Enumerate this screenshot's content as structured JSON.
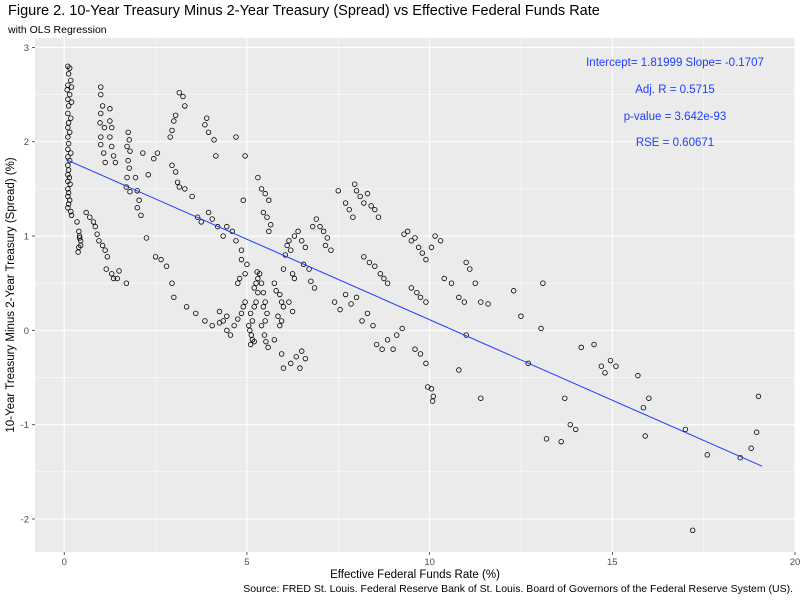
{
  "header": {
    "title": "Figure 2. 10-Year Treasury Minus 2-Year Treasury (Spread) vs Effective Federal Funds Rate",
    "subtitle": "with OLS Regression",
    "caption": "Source: FRED St. Louis. Federal Reserve Bank of St. Louis. Board of Governors of the Federal Reserve System (US)."
  },
  "colors": {
    "panel_bg": "#ebebeb",
    "grid_major": "#ffffff",
    "regression_line": "#1f3cff",
    "points": "#000000",
    "annotation": "#1f3cff"
  },
  "chart_data": {
    "type": "scatter",
    "title": "Figure 2. 10-Year Treasury Minus 2-Year Treasury (Spread) vs Effective Federal Funds Rate",
    "subtitle": "with OLS Regression",
    "xlabel": "Effective Federal Funds Rate (%)",
    "ylabel": "10-Year Treasury Minus 2-Year Treasury (Spread) (%)",
    "xlim": [
      -0.8,
      20.0
    ],
    "ylim": [
      -2.35,
      3.1
    ],
    "x_ticks": [
      "0",
      "5",
      "10",
      "15",
      "20"
    ],
    "y_ticks": [
      "-2",
      "-1",
      "0",
      "1",
      "2",
      "3"
    ],
    "grid": true,
    "regression": {
      "intercept": 1.81999,
      "slope": -0.1707,
      "x_range": [
        0.05,
        19.1
      ]
    },
    "annotations": [
      "Intercept=  1.81999  Slope=  -0.1707",
      "Adj. R =  0.5715",
      "p-value =  3.642e-93",
      "RSE =  0.60671"
    ],
    "points": [
      [
        0.1,
        2.8
      ],
      [
        0.15,
        2.78
      ],
      [
        0.12,
        2.72
      ],
      [
        0.18,
        2.65
      ],
      [
        0.1,
        2.6
      ],
      [
        0.2,
        2.58
      ],
      [
        0.08,
        2.55
      ],
      [
        0.15,
        2.5
      ],
      [
        0.1,
        2.45
      ],
      [
        0.2,
        2.42
      ],
      [
        0.12,
        2.38
      ],
      [
        0.1,
        2.3
      ],
      [
        0.18,
        2.25
      ],
      [
        0.12,
        2.2
      ],
      [
        0.1,
        2.15
      ],
      [
        0.15,
        2.1
      ],
      [
        0.1,
        2.05
      ],
      [
        0.12,
        1.98
      ],
      [
        0.1,
        1.92
      ],
      [
        0.18,
        1.88
      ],
      [
        0.1,
        1.84
      ],
      [
        0.15,
        1.8
      ],
      [
        0.1,
        1.75
      ],
      [
        0.12,
        1.7
      ],
      [
        0.1,
        1.65
      ],
      [
        0.14,
        1.62
      ],
      [
        0.1,
        1.58
      ],
      [
        0.16,
        1.55
      ],
      [
        0.1,
        1.5
      ],
      [
        0.12,
        1.46
      ],
      [
        0.1,
        1.42
      ],
      [
        0.15,
        1.38
      ],
      [
        0.12,
        1.34
      ],
      [
        0.1,
        1.3
      ],
      [
        0.18,
        1.26
      ],
      [
        0.2,
        1.22
      ],
      [
        0.35,
        1.15
      ],
      [
        0.4,
        1.05
      ],
      [
        0.42,
        1.0
      ],
      [
        0.45,
        0.95
      ],
      [
        0.4,
        0.88
      ],
      [
        0.38,
        0.83
      ],
      [
        0.45,
        0.9
      ],
      [
        0.42,
        0.98
      ],
      [
        0.6,
        1.25
      ],
      [
        0.7,
        1.2
      ],
      [
        0.8,
        1.15
      ],
      [
        0.85,
        1.1
      ],
      [
        0.9,
        1.02
      ],
      [
        0.95,
        0.95
      ],
      [
        1.0,
        2.58
      ],
      [
        1.0,
        2.5
      ],
      [
        1.05,
        2.38
      ],
      [
        1.0,
        2.3
      ],
      [
        0.98,
        2.2
      ],
      [
        1.1,
        2.15
      ],
      [
        1.0,
        2.05
      ],
      [
        1.0,
        1.97
      ],
      [
        1.08,
        1.88
      ],
      [
        1.12,
        1.78
      ],
      [
        1.25,
        2.35
      ],
      [
        1.25,
        2.22
      ],
      [
        1.3,
        2.15
      ],
      [
        1.25,
        2.05
      ],
      [
        1.3,
        1.95
      ],
      [
        1.35,
        1.85
      ],
      [
        1.4,
        1.78
      ],
      [
        1.05,
        0.9
      ],
      [
        1.12,
        0.85
      ],
      [
        1.18,
        0.78
      ],
      [
        1.15,
        0.65
      ],
      [
        1.3,
        0.6
      ],
      [
        1.35,
        0.55
      ],
      [
        1.45,
        0.55
      ],
      [
        1.5,
        0.63
      ],
      [
        1.7,
        0.5
      ],
      [
        1.75,
        2.1
      ],
      [
        1.78,
        2.02
      ],
      [
        1.72,
        1.95
      ],
      [
        1.8,
        1.9
      ],
      [
        1.75,
        1.8
      ],
      [
        1.78,
        1.72
      ],
      [
        1.72,
        1.62
      ],
      [
        1.7,
        1.52
      ],
      [
        1.8,
        1.47
      ],
      [
        1.95,
        1.62
      ],
      [
        2.0,
        1.48
      ],
      [
        2.05,
        1.38
      ],
      [
        2.0,
        1.3
      ],
      [
        2.1,
        1.22
      ],
      [
        2.15,
        1.88
      ],
      [
        2.3,
        1.65
      ],
      [
        2.45,
        1.82
      ],
      [
        2.55,
        1.88
      ],
      [
        2.25,
        0.98
      ],
      [
        2.5,
        0.78
      ],
      [
        2.65,
        0.75
      ],
      [
        2.8,
        0.68
      ],
      [
        2.9,
        2.05
      ],
      [
        2.95,
        2.12
      ],
      [
        3.0,
        2.22
      ],
      [
        3.05,
        2.28
      ],
      [
        3.15,
        2.52
      ],
      [
        3.25,
        2.48
      ],
      [
        3.3,
        2.38
      ],
      [
        2.95,
        1.75
      ],
      [
        3.05,
        1.68
      ],
      [
        3.1,
        1.57
      ],
      [
        3.15,
        1.52
      ],
      [
        3.3,
        1.5
      ],
      [
        2.95,
        0.5
      ],
      [
        3.0,
        0.35
      ],
      [
        3.35,
        0.25
      ],
      [
        3.6,
        0.18
      ],
      [
        3.85,
        0.1
      ],
      [
        4.05,
        0.05
      ],
      [
        4.25,
        0.08
      ],
      [
        4.45,
        0.15
      ],
      [
        3.5,
        1.42
      ],
      [
        3.65,
        1.2
      ],
      [
        3.75,
        1.15
      ],
      [
        3.85,
        2.18
      ],
      [
        3.95,
        2.1
      ],
      [
        4.1,
        2.02
      ],
      [
        4.15,
        1.85
      ],
      [
        3.9,
        2.25
      ],
      [
        3.95,
        1.25
      ],
      [
        4.05,
        1.18
      ],
      [
        4.2,
        1.1
      ],
      [
        4.35,
        1.0
      ],
      [
        4.45,
        1.1
      ],
      [
        4.6,
        1.05
      ],
      [
        4.7,
        0.95
      ],
      [
        4.85,
        0.85
      ],
      [
        4.9,
        1.38
      ],
      [
        4.95,
        1.85
      ],
      [
        4.7,
        2.05
      ],
      [
        4.25,
        0.2
      ],
      [
        4.35,
        0.1
      ],
      [
        4.45,
        0.0
      ],
      [
        4.55,
        -0.05
      ],
      [
        4.65,
        0.05
      ],
      [
        4.75,
        0.12
      ],
      [
        4.85,
        0.18
      ],
      [
        4.9,
        0.25
      ],
      [
        4.95,
        0.3
      ],
      [
        4.75,
        0.5
      ],
      [
        4.8,
        0.55
      ],
      [
        4.95,
        0.6
      ],
      [
        5.0,
        0.7
      ],
      [
        4.85,
        0.75
      ],
      [
        5.05,
        0.05
      ],
      [
        5.08,
        0.0
      ],
      [
        5.12,
        -0.05
      ],
      [
        5.15,
        -0.1
      ],
      [
        5.1,
        -0.15
      ],
      [
        5.2,
        -0.12
      ],
      [
        5.15,
        0.1
      ],
      [
        5.1,
        0.18
      ],
      [
        5.2,
        0.25
      ],
      [
        5.25,
        0.3
      ],
      [
        5.3,
        0.4
      ],
      [
        5.2,
        0.45
      ],
      [
        5.25,
        0.5
      ],
      [
        5.3,
        0.55
      ],
      [
        5.35,
        0.6
      ],
      [
        5.28,
        0.62
      ],
      [
        5.4,
        0.5
      ],
      [
        5.45,
        0.4
      ],
      [
        5.5,
        0.3
      ],
      [
        5.45,
        0.25
      ],
      [
        5.55,
        0.18
      ],
      [
        5.5,
        0.1
      ],
      [
        5.4,
        0.05
      ],
      [
        5.48,
        -0.05
      ],
      [
        5.52,
        -0.12
      ],
      [
        5.58,
        -0.18
      ],
      [
        5.3,
        1.62
      ],
      [
        5.4,
        1.5
      ],
      [
        5.5,
        1.45
      ],
      [
        5.6,
        1.38
      ],
      [
        5.45,
        1.25
      ],
      [
        5.55,
        1.2
      ],
      [
        5.65,
        1.12
      ],
      [
        5.6,
        1.05
      ],
      [
        5.75,
        0.5
      ],
      [
        5.8,
        0.42
      ],
      [
        5.9,
        0.38
      ],
      [
        5.95,
        0.3
      ],
      [
        6.0,
        0.25
      ],
      [
        5.85,
        0.15
      ],
      [
        5.95,
        0.1
      ],
      [
        5.9,
        0.05
      ],
      [
        5.75,
        -0.1
      ],
      [
        5.95,
        -0.25
      ],
      [
        6.0,
        0.65
      ],
      [
        6.05,
        0.8
      ],
      [
        6.1,
        0.9
      ],
      [
        6.15,
        0.95
      ],
      [
        6.2,
        0.85
      ],
      [
        6.25,
        0.6
      ],
      [
        6.3,
        0.55
      ],
      [
        6.15,
        0.3
      ],
      [
        6.25,
        0.2
      ],
      [
        6.3,
        1.0
      ],
      [
        6.4,
        1.05
      ],
      [
        6.5,
        0.95
      ],
      [
        6.6,
        0.88
      ],
      [
        6.55,
        0.7
      ],
      [
        6.7,
        0.65
      ],
      [
        6.75,
        0.52
      ],
      [
        6.85,
        0.45
      ],
      [
        6.0,
        -0.4
      ],
      [
        6.2,
        -0.35
      ],
      [
        6.35,
        -0.28
      ],
      [
        6.5,
        -0.22
      ],
      [
        6.45,
        -0.4
      ],
      [
        6.6,
        -0.3
      ],
      [
        6.8,
        1.1
      ],
      [
        6.9,
        1.18
      ],
      [
        7.0,
        1.1
      ],
      [
        7.1,
        1.05
      ],
      [
        7.2,
        0.98
      ],
      [
        7.15,
        0.9
      ],
      [
        7.3,
        0.85
      ],
      [
        7.5,
        1.48
      ],
      [
        7.7,
        1.35
      ],
      [
        7.8,
        1.28
      ],
      [
        7.9,
        1.2
      ],
      [
        7.95,
        1.55
      ],
      [
        8.0,
        1.48
      ],
      [
        8.1,
        1.42
      ],
      [
        8.2,
        1.35
      ],
      [
        8.3,
        1.45
      ],
      [
        8.4,
        1.32
      ],
      [
        8.5,
        1.28
      ],
      [
        8.6,
        1.2
      ],
      [
        7.4,
        0.3
      ],
      [
        7.55,
        0.22
      ],
      [
        7.7,
        0.38
      ],
      [
        7.85,
        0.28
      ],
      [
        8.0,
        0.35
      ],
      [
        8.15,
        0.1
      ],
      [
        8.3,
        0.18
      ],
      [
        8.45,
        0.05
      ],
      [
        8.2,
        0.78
      ],
      [
        8.35,
        0.72
      ],
      [
        8.5,
        0.68
      ],
      [
        8.65,
        0.6
      ],
      [
        8.75,
        0.55
      ],
      [
        8.85,
        0.5
      ],
      [
        8.55,
        -0.15
      ],
      [
        8.7,
        -0.2
      ],
      [
        8.85,
        -0.1
      ],
      [
        9.0,
        -0.2
      ],
      [
        9.1,
        -0.05
      ],
      [
        9.25,
        0.02
      ],
      [
        9.3,
        1.02
      ],
      [
        9.4,
        1.05
      ],
      [
        9.5,
        0.95
      ],
      [
        9.6,
        0.98
      ],
      [
        9.7,
        0.88
      ],
      [
        9.8,
        0.82
      ],
      [
        9.9,
        0.75
      ],
      [
        10.05,
        0.88
      ],
      [
        10.15,
        1.0
      ],
      [
        10.3,
        0.95
      ],
      [
        9.5,
        0.45
      ],
      [
        9.65,
        0.4
      ],
      [
        9.75,
        0.35
      ],
      [
        9.9,
        0.3
      ],
      [
        9.6,
        -0.2
      ],
      [
        9.75,
        -0.25
      ],
      [
        9.9,
        -0.35
      ],
      [
        9.95,
        -0.6
      ],
      [
        10.05,
        -0.62
      ],
      [
        10.1,
        -0.7
      ],
      [
        10.08,
        -0.75
      ],
      [
        10.4,
        0.55
      ],
      [
        10.6,
        0.5
      ],
      [
        10.8,
        0.35
      ],
      [
        10.95,
        0.3
      ],
      [
        11.0,
        0.72
      ],
      [
        11.1,
        0.65
      ],
      [
        11.25,
        0.5
      ],
      [
        11.4,
        0.3
      ],
      [
        11.6,
        0.28
      ],
      [
        10.8,
        -0.42
      ],
      [
        11.0,
        -0.05
      ],
      [
        11.4,
        -0.72
      ],
      [
        12.3,
        0.42
      ],
      [
        12.5,
        0.15
      ],
      [
        12.7,
        -0.35
      ],
      [
        13.1,
        0.5
      ],
      [
        13.05,
        0.02
      ],
      [
        13.2,
        -1.15
      ],
      [
        13.6,
        -1.18
      ],
      [
        13.7,
        -0.72
      ],
      [
        13.85,
        -1.0
      ],
      [
        14.0,
        -1.05
      ],
      [
        14.15,
        -0.18
      ],
      [
        14.5,
        -0.15
      ],
      [
        14.7,
        -0.38
      ],
      [
        14.8,
        -0.45
      ],
      [
        14.95,
        -0.32
      ],
      [
        15.1,
        -0.38
      ],
      [
        15.7,
        -0.48
      ],
      [
        15.85,
        -0.82
      ],
      [
        15.9,
        -1.12
      ],
      [
        16.0,
        -0.72
      ],
      [
        17.0,
        -1.05
      ],
      [
        17.2,
        -2.12
      ],
      [
        17.6,
        -1.32
      ],
      [
        18.5,
        -1.35
      ],
      [
        18.8,
        -1.25
      ],
      [
        18.95,
        -1.08
      ],
      [
        19.0,
        -0.7
      ]
    ]
  }
}
